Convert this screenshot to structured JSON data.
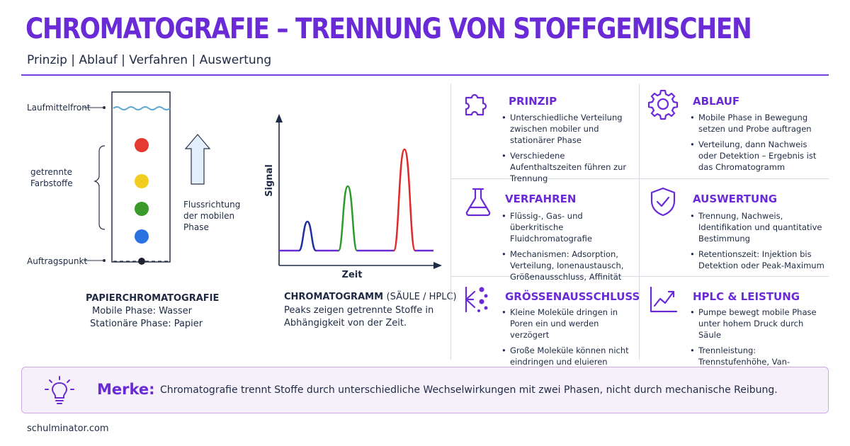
{
  "header": {
    "title": "CHROMATOGRAFIE – TRENNUNG VON STOFFGEMISCHEN",
    "subtitle": "Prinzip | Ablauf | Verfahren | Auswertung"
  },
  "paper": {
    "labels": {
      "front": "Laufmittelfront",
      "separated_line1": "getrennte",
      "separated_line2": "Farbstoffe",
      "start": "Auftragspunkt",
      "flow_line1": "Flussrichtung",
      "flow_line2": "der mobilen",
      "flow_line3": "Phase"
    },
    "spot_colors": [
      "#e53a2f",
      "#f2cf1f",
      "#3a9a2a",
      "#2a72e0"
    ],
    "caption_title": "PAPIERCHROMATOGRAFIE",
    "caption_line1": "Mobile Phase: Wasser",
    "caption_line2": "Stationäre Phase: Papier"
  },
  "chromatogram": {
    "ylabel": "Signal",
    "xlabel": "Zeit",
    "caption_title": "CHROMATOGRAMM",
    "caption_title_suffix": "(SÄULE / HPLC)",
    "caption_desc": "Peaks zeigen getrennte Stoffe in Abhängigkeit von der Zeit.",
    "peak_colors": [
      "#1f2fa0",
      "#2e9a2e",
      "#e02a2a"
    ]
  },
  "cards": [
    {
      "icon": "puzzle-icon",
      "title": "PRINZIP",
      "bullets": [
        "Unterschiedliche Verteilung zwischen mobiler und stationärer Phase",
        "Verschiedene Aufenthaltszeiten führen zur Trennung"
      ]
    },
    {
      "icon": "gear-icon",
      "title": "ABLAUF",
      "bullets": [
        "Mobile Phase in Bewegung setzen und Probe auftragen",
        "Verteilung, dann Nachweis oder Detektion – Ergebnis ist das Chromatogramm"
      ]
    },
    {
      "icon": "flask-icon",
      "title": "VERFAHREN",
      "bullets": [
        "Flüssig-, Gas- und überkritische Fluidchromatografie",
        "Mechanismen: Adsorption, Verteilung, Ionenaustausch, Größenausschluss, Affinität"
      ]
    },
    {
      "icon": "shield-check-icon",
      "title": "AUSWERTUNG",
      "bullets": [
        "Trennung, Nachweis, Identifikation und quantitative Bestimmung",
        "Retentionszeit: Injektion bis Detektion oder Peak-Maximum"
      ]
    },
    {
      "icon": "size-exclusion-icon",
      "title": "GRÖSSENAUSSCHLUSS",
      "bullets": [
        "Kleine Moleküle dringen in Poren ein und werden verzögert",
        "Große Moleküle können nicht eindringen und eluieren früher"
      ]
    },
    {
      "icon": "trend-chart-icon",
      "title": "HPLC & LEISTUNG",
      "bullets": [
        "Pumpe bewegt mobile Phase unter hohem Druck durch Säule",
        "Trennleistung: Trennstufenhöhe, Van-Deemter-Gleichung"
      ]
    }
  ],
  "merke": {
    "icon": "lightbulb-icon",
    "title": "Merke:",
    "text": "Chromatografie trennt Stoffe durch unterschiedliche Wechselwirkungen mit zwei Phasen, nicht durch mechanische Reibung."
  },
  "footer": {
    "brand": "schulminator.com"
  },
  "colors": {
    "accent": "#6a2bd6",
    "text": "#1f2a44",
    "divider": "#d9dbe3",
    "merke_bg": "#f6f0fb"
  }
}
